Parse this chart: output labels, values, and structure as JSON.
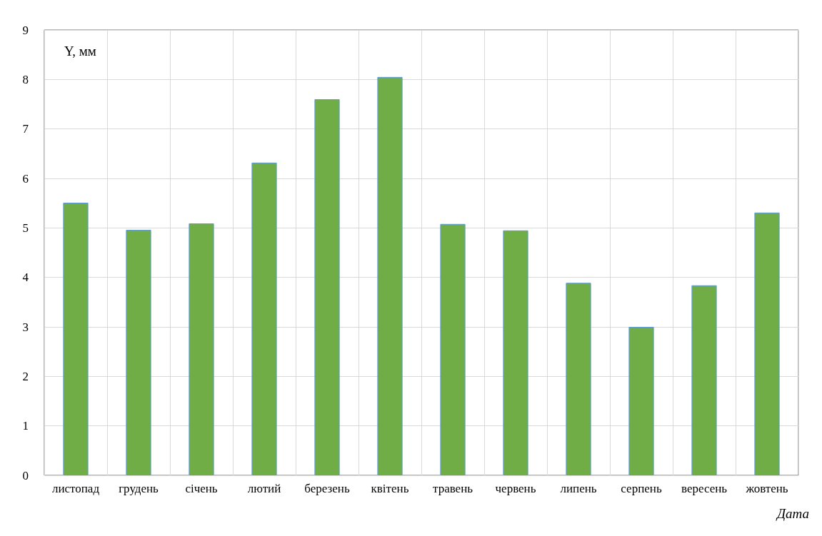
{
  "chart_data": {
    "type": "bar",
    "xlabel": "Дата",
    "ylabel": "Y, мм",
    "categories": [
      "листопад",
      "грудень",
      "січень",
      "лютий",
      "березень",
      "квітень",
      "травень",
      "червень",
      "липень",
      "серпень",
      "вересень",
      "жовтень"
    ],
    "values": [
      5.51,
      4.96,
      5.09,
      6.32,
      7.6,
      8.05,
      5.08,
      4.95,
      3.89,
      3.0,
      3.84,
      5.31
    ],
    "color": "#70ad47",
    "ylim": [
      0,
      9
    ],
    "yticks": [
      0,
      1,
      2,
      3,
      4,
      5,
      6,
      7,
      8,
      9
    ],
    "grid": true
  }
}
